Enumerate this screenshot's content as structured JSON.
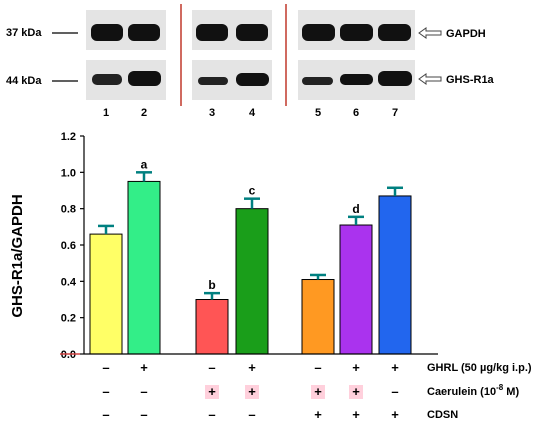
{
  "blot": {
    "markers": [
      "37 kDa",
      "44 kDa"
    ],
    "proteins": [
      "GAPDH",
      "GHS-R1a"
    ],
    "lanes": [
      "1",
      "2",
      "3",
      "4",
      "5",
      "6",
      "7"
    ],
    "divider_color": "#c0392b"
  },
  "chart_data": {
    "type": "bar",
    "ylabel": "GHS-R1a/GAPDH",
    "ylim": [
      0,
      1.2
    ],
    "yticks": [
      "0.0",
      "0.2",
      "0.4",
      "0.6",
      "0.8",
      "1.0",
      "1.2"
    ],
    "bars": [
      {
        "value": 0.66,
        "error": 0.045,
        "color": "#ffff66",
        "sig": ""
      },
      {
        "value": 0.95,
        "error": 0.05,
        "color": "#33ee88",
        "sig": "a"
      },
      {
        "value": 0.3,
        "error": 0.035,
        "color": "#ff5555",
        "sig": "b"
      },
      {
        "value": 0.8,
        "error": 0.055,
        "color": "#1a9e1a",
        "sig": "c"
      },
      {
        "value": 0.41,
        "error": 0.025,
        "color": "#ff9922",
        "sig": ""
      },
      {
        "value": 0.71,
        "error": 0.045,
        "color": "#aa33ee",
        "sig": "d"
      },
      {
        "value": 0.87,
        "error": 0.045,
        "color": "#2266ee",
        "sig": ""
      }
    ],
    "error_color": "#008080",
    "conditions": [
      {
        "label": "GHRL (50 µg/kg i.p.)",
        "color": "#000000",
        "signs": [
          "–",
          "+",
          "–",
          "+",
          "–",
          "+",
          "+"
        ]
      },
      {
        "label": "Caerulein (10",
        "superscript": "-8",
        "label_suffix": " M)",
        "color": "#a0522d",
        "signs": [
          "–",
          "–",
          "+",
          "+",
          "+",
          "+",
          "–"
        ]
      },
      {
        "label": "CDSN",
        "color": "#000000",
        "signs": [
          "–",
          "–",
          "–",
          "–",
          "+",
          "+",
          "+"
        ]
      }
    ]
  }
}
